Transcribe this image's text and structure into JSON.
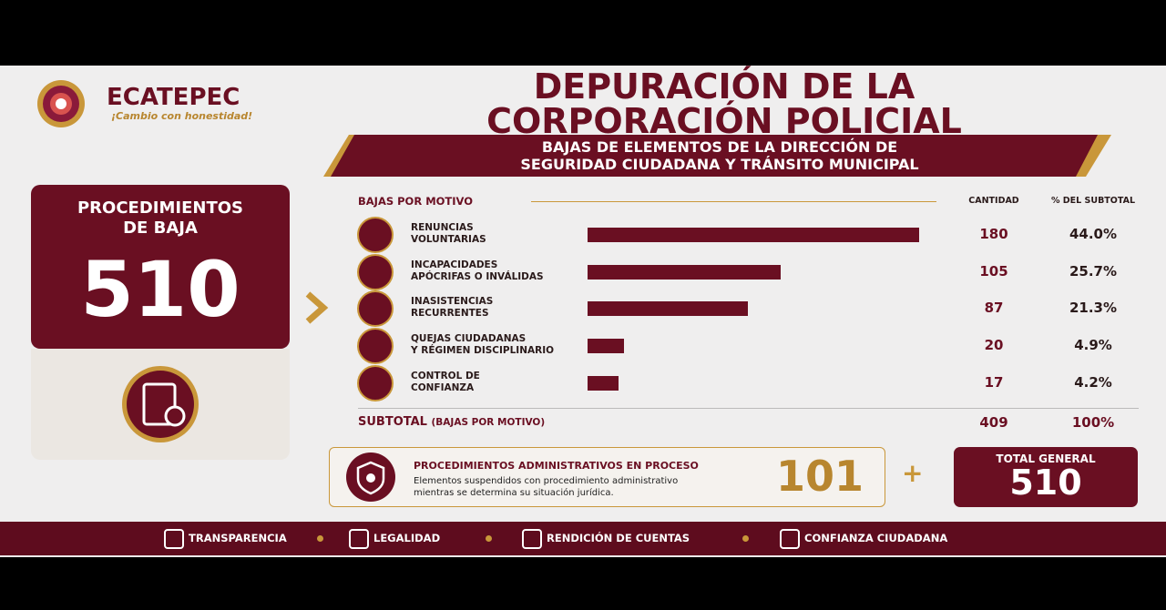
{
  "header": {
    "brand": "ECATEPEC",
    "slogan": "¡Cambio con honestidad!",
    "title": [
      "DEPURACIÓN DE LA",
      "CORPORACIÓN POLICIAL"
    ],
    "subtitle": [
      "BAJAS DE ELEMENTOS DE LA DIRECCIÓN DE",
      "SEGURIDAD CIUDADANA Y TRÁNSITO MUNICIPAL"
    ]
  },
  "summary_card": {
    "title": [
      "PROCEDIMIENTOS",
      "DE BAJA"
    ],
    "value": "510"
  },
  "chart_data": {
    "type": "bar",
    "orientation": "horizontal",
    "title": "BAJAS POR MOTIVO",
    "value_column_label": "CANTIDAD",
    "share_column_label": "% DEL SUBTOTAL",
    "categories": [
      "RENUNCIAS\nVOLUNTARIAS",
      "INCAPACIDADES\nAPÓCRIFAS O INVÁLIDAS",
      "INASISTENCIAS\nRECURRENTES",
      "QUEJAS CIUDADANAS\nY RÉGIMEN DISCIPLINARIO",
      "CONTROL DE\nCONFIANZA"
    ],
    "values": [
      180,
      105,
      87,
      20,
      17
    ],
    "share_labels": [
      "44.0%",
      "25.7%",
      "21.3%",
      "4.9%",
      "4.2%"
    ],
    "color": "#6a0f22",
    "xlim": [
      0,
      180
    ],
    "subtotal": {
      "label": "SUBTOTAL",
      "note": "(BAJAS POR MOTIVO)",
      "value": 409,
      "share_label": "100%"
    }
  },
  "in_process": {
    "title": "PROCEDIMIENTOS ADMINISTRATIVOS EN PROCESO",
    "description": [
      "Elementos suspendidos con procedimiento administrativo",
      "mientras se determina su situación jurídica."
    ],
    "value": "101"
  },
  "plus": "+",
  "total": {
    "label": "TOTAL GENERAL",
    "value": "510"
  },
  "footer": [
    "TRANSPARENCIA",
    "LEGALIDAD",
    "RENDICIÓN DE CUENTAS",
    "CONFIANZA CIUDADANA"
  ]
}
